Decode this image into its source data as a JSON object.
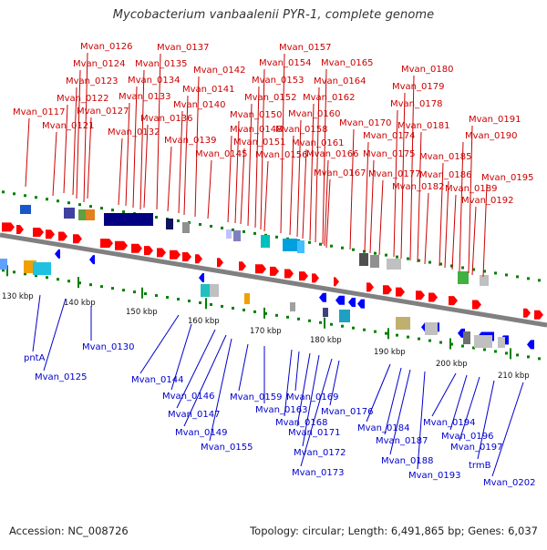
{
  "title": "Mycobacterium vanbaalenii PYR-1, complete genome",
  "footer": {
    "accession": "Accession: NC_008726",
    "summary": "Topology: circular; Length: 6,491,865 bp; Genes: 6,037"
  },
  "colors": {
    "top_label": "#cc0000",
    "bottom_label": "#0000cc",
    "forward_arrow": "#ff0000",
    "reverse_arrow": "#0000ff",
    "backbone": "#808080",
    "tick": "#008000"
  },
  "scale_labels": [
    "130 kbp",
    "140 kbp",
    "150 kbp",
    "160 kbp",
    "170 kbp",
    "180 kbp",
    "190 kbp",
    "200 kbp",
    "210 kbp"
  ],
  "top_genes": [
    "Mvan_0117",
    "Mvan_0121",
    "Mvan_0122",
    "Mvan_0123",
    "Mvan_0124",
    "Mvan_0126",
    "Mvan_0127",
    "Mvan_0132",
    "Mvan_0133",
    "Mvan_0134",
    "Mvan_0135",
    "Mvan_0136",
    "Mvan_0137",
    "Mvan_0139",
    "Mvan_0140",
    "Mvan_0141",
    "Mvan_0142",
    "Mvan_0145",
    "Mvan_0148",
    "Mvan_0150",
    "Mvan_0151",
    "Mvan_0152",
    "Mvan_0153",
    "Mvan_0154",
    "Mvan_0156",
    "Mvan_0157",
    "Mvan_0158",
    "Mvan_0160",
    "Mvan_0161",
    "Mvan_0162",
    "Mvan_0164",
    "Mvan_0165",
    "Mvan_0166",
    "Mvan_0167",
    "Mvan_0170",
    "Mvan_0174",
    "Mvan_0175",
    "Mvan_0177",
    "Mvan_0178",
    "Mvan_0179",
    "Mvan_0180",
    "Mvan_0181",
    "Mvan_0182",
    "Mvan_0185",
    "Mvan_0186",
    "Mvan_0189",
    "Mvan_0190",
    "Mvan_0191",
    "Mvan_0192",
    "Mvan_0195"
  ],
  "bottom_genes": [
    "pntA",
    "Mvan_0125",
    "Mvan_0130",
    "Mvan_0144",
    "Mvan_0146",
    "Mvan_0147",
    "Mvan_0149",
    "Mvan_0155",
    "Mvan_0159",
    "Mvan_0163",
    "Mvan_0168",
    "Mvan_0169",
    "Mvan_0171",
    "Mvan_0172",
    "Mvan_0173",
    "Mvan_0176",
    "Mvan_0184",
    "Mvan_0187",
    "Mvan_0188",
    "Mvan_0193",
    "Mvan_0194",
    "Mvan_0196",
    "Mvan_0197",
    "trmB",
    "Mvan_0202"
  ]
}
